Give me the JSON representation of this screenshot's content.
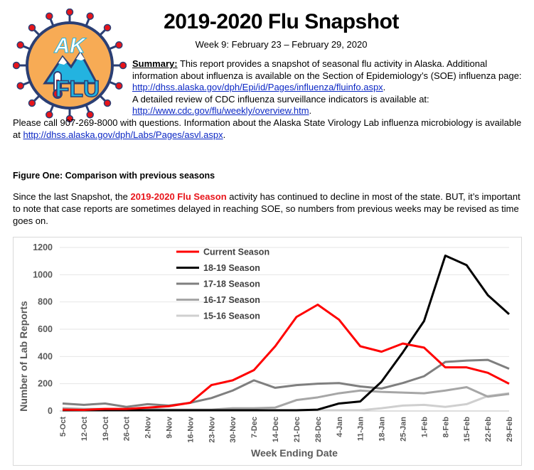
{
  "header": {
    "title": "2019-2020 Flu Snapshot",
    "week": "Week 9: February 23 – February 29, 2020",
    "logo_text_top": "AK",
    "logo_text_bottom": "FLU"
  },
  "summary": {
    "label": "Summary:",
    "text1": " This report provides a snapshot of seasonal flu activity in Alaska. Additional information about influenza is available on the Section of Epidemiology’s (SOE) influenza page: ",
    "link1": "http://dhss.alaska.gov/dph/Epi/id/Pages/influenza/fluinfo.aspx",
    "text2": ".",
    "text3": "A detailed review of CDC influenza surveillance indicators is available at:",
    "link2": "http://www.cdc.gov/flu/weekly/overview.htm",
    "text4": "."
  },
  "contact": {
    "text1": "Please call 907-269-8000 with questions. Information about the Alaska State Virology Lab influenza microbiology is available at ",
    "link": "http://dhss.alaska.gov/dph/Labs/Pages/asvl.aspx",
    "text2": "."
  },
  "figure": {
    "heading": "Figure One: Comparison with previous seasons",
    "intro_pre": "Since the last Snapshot, the ",
    "intro_highlight": "2019-2020 Flu Season",
    "intro_post": " activity has continued to decline in most of the state.  BUT, it’s important to note that case reports are sometimes delayed in reaching SOE, so numbers from previous weeks may be revised as time goes on."
  },
  "chart_data": {
    "type": "line",
    "title": "",
    "xlabel": "Week Ending Date",
    "ylabel": "Number of Lab Reports",
    "ylim": [
      0,
      1200
    ],
    "yticks": [
      0,
      200,
      400,
      600,
      800,
      1000,
      1200
    ],
    "grid": true,
    "legend_position": "top-left",
    "categories": [
      "5-Oct",
      "12-Oct",
      "19-Oct",
      "26-Oct",
      "2-Nov",
      "9-Nov",
      "16-Nov",
      "23-Nov",
      "30-Nov",
      "7-Dec",
      "14-Dec",
      "21-Dec",
      "28-Dec",
      "4-Jan",
      "11-Jan",
      "18-Jan",
      "25-Jan",
      "1-Feb",
      "8-Feb",
      "15-Feb",
      "22-Feb",
      "29-Feb"
    ],
    "series": [
      {
        "name": "Current Season",
        "color": "#ff0000",
        "width": 3,
        "values": [
          10,
          8,
          15,
          15,
          25,
          35,
          60,
          190,
          225,
          300,
          475,
          690,
          780,
          670,
          475,
          435,
          495,
          465,
          320,
          320,
          280,
          200
        ]
      },
      {
        "name": "18-19 Season",
        "color": "#000000",
        "width": 3,
        "values": [
          5,
          5,
          5,
          5,
          5,
          5,
          5,
          5,
          5,
          5,
          5,
          5,
          10,
          55,
          70,
          215,
          430,
          660,
          1140,
          1070,
          850,
          710
        ]
      },
      {
        "name": "17-18 Season",
        "color": "#7f7f7f",
        "width": 3,
        "values": [
          55,
          45,
          55,
          30,
          50,
          40,
          60,
          95,
          150,
          225,
          170,
          190,
          200,
          205,
          180,
          165,
          205,
          255,
          360,
          370,
          375,
          310
        ]
      },
      {
        "name": "16-17 Season",
        "color": "#a6a6a6",
        "width": 3,
        "values": [
          20,
          15,
          15,
          15,
          15,
          10,
          10,
          10,
          20,
          20,
          25,
          80,
          100,
          130,
          150,
          140,
          135,
          130,
          150,
          175,
          105,
          125
        ]
      },
      {
        "name": "15-16 Season",
        "color": "#cfcfcf",
        "width": 3,
        "values": [
          5,
          5,
          5,
          5,
          5,
          5,
          5,
          5,
          5,
          5,
          5,
          5,
          5,
          5,
          5,
          20,
          40,
          45,
          30,
          50,
          110,
          130
        ]
      }
    ]
  }
}
